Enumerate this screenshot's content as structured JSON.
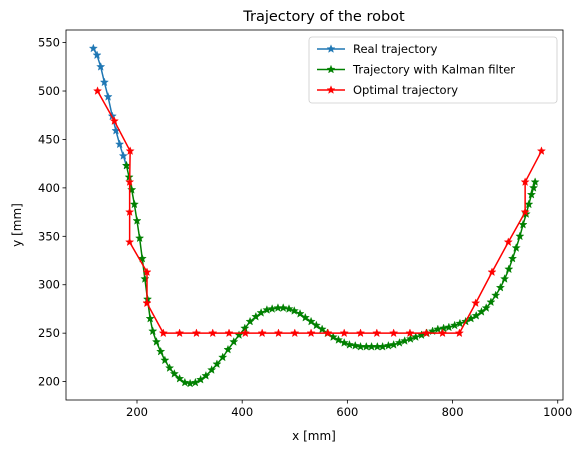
{
  "chart_data": {
    "type": "line",
    "title": "Trajectory of the robot",
    "xlabel": "x [mm]",
    "ylabel": "y [mm]",
    "xlim": [
      65,
      1010
    ],
    "ylim": [
      181,
      563
    ],
    "xticks": [
      200,
      400,
      600,
      800,
      1000
    ],
    "yticks": [
      200,
      250,
      300,
      350,
      400,
      450,
      500,
      550
    ],
    "grid": false,
    "legend": "top-right",
    "series": [
      {
        "name": "Real trajectory",
        "color": "#1f77b4",
        "marker": "star",
        "x": [
          117,
          124,
          131,
          138,
          145,
          153,
          160,
          167,
          174,
          180
        ],
        "y": [
          544,
          537,
          525,
          509,
          494,
          474,
          459,
          445,
          433,
          423
        ]
      },
      {
        "name": "Trajectory with Kalman filter",
        "color": "#008000",
        "marker": "star",
        "x": [
          180,
          185,
          190,
          195,
          200,
          205,
          210,
          215,
          220,
          225,
          230,
          237,
          245,
          253,
          262,
          271,
          281,
          291,
          301,
          311,
          321,
          331,
          342,
          352,
          363,
          373,
          384,
          394,
          405,
          415,
          426,
          436,
          447,
          457,
          468,
          478,
          489,
          499,
          510,
          520,
          531,
          541,
          552,
          562,
          573,
          583,
          594,
          604,
          615,
          625,
          636,
          646,
          657,
          667,
          678,
          688,
          699,
          709,
          720,
          730,
          741,
          751,
          762,
          772,
          783,
          793,
          804,
          814,
          825,
          835,
          845,
          855,
          864,
          873,
          882,
          891,
          899,
          907,
          914,
          921,
          928,
          934,
          940,
          945,
          950,
          954,
          957
        ],
        "y": [
          423,
          411,
          398,
          383,
          366,
          348,
          327,
          306,
          285,
          265,
          252,
          241,
          231,
          222,
          214,
          208,
          203,
          199,
          198,
          199,
          202,
          206,
          212,
          218,
          225,
          233,
          241,
          248,
          255,
          262,
          267,
          271,
          274,
          275,
          276,
          276,
          275,
          273,
          270,
          266,
          262,
          258,
          254,
          250,
          246,
          243,
          240,
          238,
          237,
          236,
          236,
          236,
          236,
          236,
          237,
          238,
          240,
          242,
          244,
          246,
          248,
          250,
          252,
          254,
          255,
          256,
          258,
          260,
          262,
          265,
          268,
          272,
          276,
          282,
          289,
          297,
          306,
          316,
          327,
          338,
          350,
          362,
          373,
          383,
          393,
          400,
          406
        ]
      },
      {
        "name": "Optimal trajectory",
        "color": "#ff0000",
        "marker": "star",
        "x": [
          125,
          157,
          187,
          186,
          186,
          186,
          219,
          219,
          219,
          250,
          281,
          313,
          344,
          375,
          406,
          438,
          469,
          500,
          531,
          563,
          594,
          625,
          656,
          688,
          719,
          750,
          781,
          813,
          844,
          875,
          906,
          938,
          938,
          969
        ],
        "y": [
          500,
          469,
          438,
          406,
          375,
          344,
          313,
          281,
          281,
          250,
          250,
          250,
          250,
          250,
          250,
          250,
          250,
          250,
          250,
          250,
          250,
          250,
          250,
          250,
          250,
          250,
          250,
          250,
          281,
          313,
          344,
          375,
          406,
          438
        ]
      }
    ]
  }
}
